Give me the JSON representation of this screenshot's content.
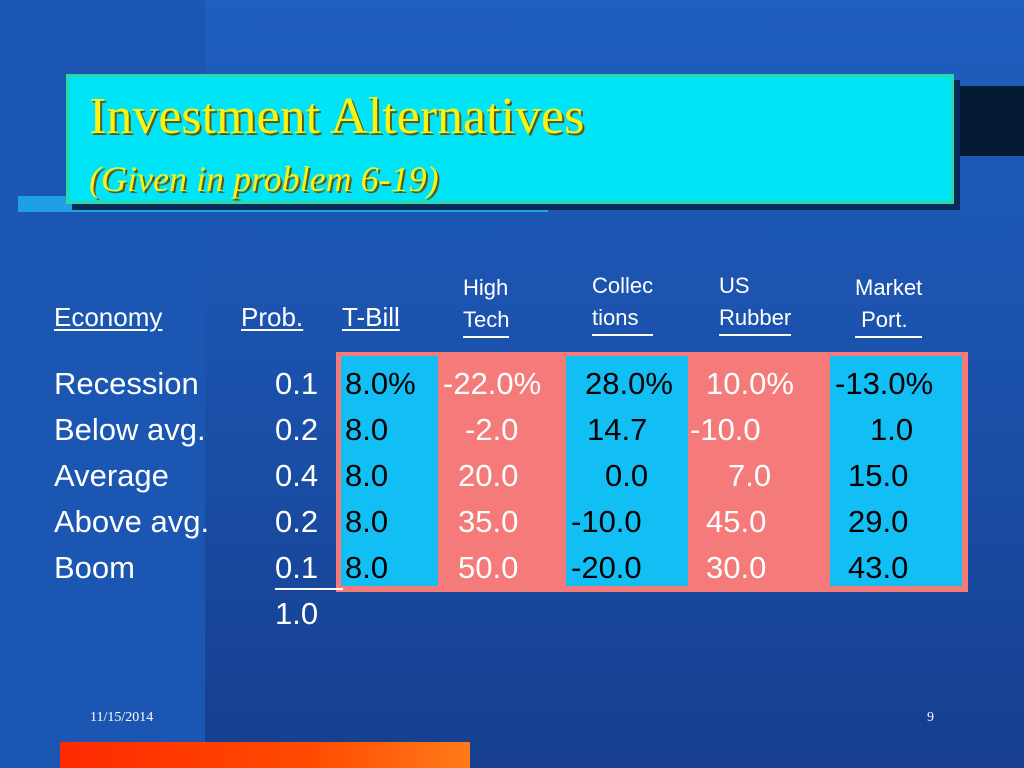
{
  "title": "Investment Alternatives",
  "subtitle": "(Given in problem 6-19)",
  "headers": {
    "economy": "Economy",
    "prob": "Prob.",
    "tbill": "T-Bill",
    "hightech": [
      "High",
      "Tech"
    ],
    "collections": [
      "Collec",
      "tions"
    ],
    "usrubber": [
      "US",
      "Rubber"
    ],
    "market": [
      "Market",
      " Port."
    ]
  },
  "rows": [
    {
      "economy": "Recession",
      "prob": "0.1",
      "tbill": "8.0%",
      "hightech": "-22.0%",
      "collections": "28.0%",
      "usrubber": "10.0%",
      "market": "-13.0%"
    },
    {
      "economy": "Below avg.",
      "prob": "0.2",
      "tbill": "8.0",
      "hightech": "-2.0",
      "collections": "14.7",
      "usrubber": "-10.0",
      "market": "1.0"
    },
    {
      "economy": "Average",
      "prob": "0.4",
      "tbill": "8.0",
      "hightech": "20.0",
      "collections": "0.0",
      "usrubber": "7.0",
      "market": "15.0"
    },
    {
      "economy": "Above avg.",
      "prob": "0.2",
      "tbill": "8.0",
      "hightech": "35.0",
      "collections": "-10.0",
      "usrubber": "45.0",
      "market": "29.0"
    },
    {
      "economy": "Boom",
      "prob": "0.1",
      "tbill": "8.0",
      "hightech": "50.0",
      "collections": "-20.0",
      "usrubber": "30.0",
      "market": "43.0"
    }
  ],
  "prob_total": "1.0",
  "footer": {
    "date": "11/15/2014",
    "page": "9"
  }
}
